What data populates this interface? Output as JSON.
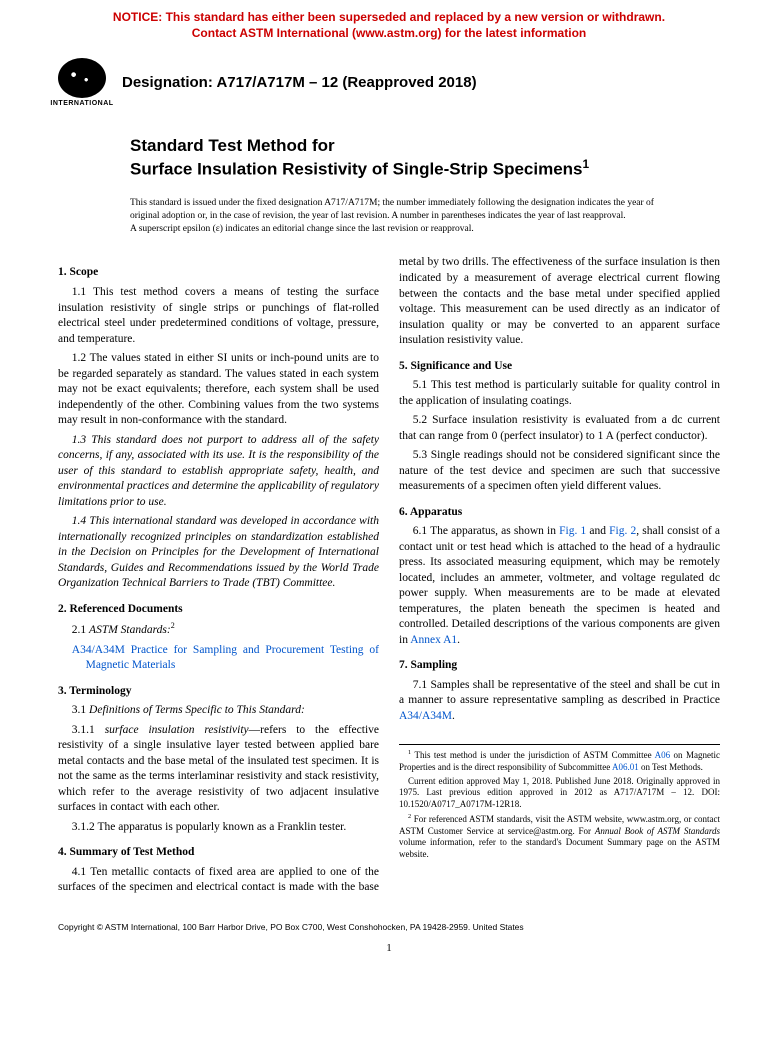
{
  "notice": {
    "line1": "NOTICE: This standard has either been superseded and replaced by a new version or withdrawn.",
    "line2": "Contact ASTM International (www.astm.org) for the latest information"
  },
  "logo_label": "INTERNATIONAL",
  "designation": "Designation: A717/A717M – 12 (Reapproved 2018)",
  "title_line1": "Standard Test Method for",
  "title_line2": "Surface Insulation Resistivity of Single-Strip Specimens",
  "title_sup": "1",
  "issue_note_l1": "This standard is issued under the fixed designation A717/A717M; the number immediately following the designation indicates the year of original adoption or, in the case of revision, the year of last revision. A number in parentheses indicates the year of last reapproval.",
  "issue_note_l2": "A superscript epsilon (ɛ) indicates an editorial change since the last revision or reapproval.",
  "s1_head": "1. Scope",
  "s1_1": "1.1 This test method covers a means of testing the surface insulation resistivity of single strips or punchings of flat-rolled electrical steel under predetermined conditions of voltage, pressure, and temperature.",
  "s1_2": "1.2 The values stated in either SI units or inch-pound units are to be regarded separately as standard. The values stated in each system may not be exact equivalents; therefore, each system shall be used independently of the other. Combining values from the two systems may result in non-conformance with the standard.",
  "s1_3": "1.3 This standard does not purport to address all of the safety concerns, if any, associated with its use. It is the responsibility of the user of this standard to establish appropriate safety, health, and environmental practices and determine the applicability of regulatory limitations prior to use.",
  "s1_4": "1.4 This international standard was developed in accordance with internationally recognized principles on standardization established in the Decision on Principles for the Development of International Standards, Guides and Recommendations issued by the World Trade Organization Technical Barriers to Trade (TBT) Committee.",
  "s2_head": "2. Referenced Documents",
  "s2_1_label": "2.1 ",
  "s2_1_ital": "ASTM Standards:",
  "s2_1_sup": "2",
  "s2_ref_code": "A34/A34M",
  "s2_ref_title": " Practice for Sampling and Procurement Testing of Magnetic Materials",
  "s3_head": "3. Terminology",
  "s3_1": "Definitions of Terms Specific to This Standard:",
  "s3_1_num": "3.1 ",
  "s3_1_1_num": "3.1.1 ",
  "s3_1_1_term": "surface insulation resistivity",
  "s3_1_1_body": "—refers to the effective resistivity of a single insulative layer tested between applied bare metal contacts and the base metal of the insulated test specimen. It is not the same as the terms interlaminar resistivity and stack resistivity, which refer to the average resistivity of two adjacent insulative surfaces in contact with each other.",
  "s3_1_2": "3.1.2 The apparatus is popularly known as a Franklin tester.",
  "s4_head": "4. Summary of Test Method",
  "s4_1": "4.1 Ten metallic contacts of fixed area are applied to one of the surfaces of the specimen and electrical contact is made with the base metal by two drills. The effectiveness of the surface insulation is then indicated by a measurement of average electrical current flowing between the contacts and the base metal under specified applied voltage. This measurement can be used directly as an indicator of insulation quality or may be converted to an apparent surface insulation resistivity value.",
  "s5_head": "5. Significance and Use",
  "s5_1": "5.1 This test method is particularly suitable for quality control in the application of insulating coatings.",
  "s5_2": "5.2 Surface insulation resistivity is evaluated from a dc current that can range from 0 (perfect insulator) to 1 A (perfect conductor).",
  "s5_3": "5.3 Single readings should not be considered significant since the nature of the test device and specimen are such that successive measurements of a specimen often yield different values.",
  "s6_head": "6. Apparatus",
  "s6_1a": "6.1 The apparatus, as shown in ",
  "s6_fig1": "Fig. 1",
  "s6_and": " and ",
  "s6_fig2": "Fig. 2",
  "s6_1b": ", shall consist of a contact unit or test head which is attached to the head of a hydraulic press. Its associated measuring equipment, which may be remotely located, includes an ammeter, voltmeter, and voltage regulated dc power supply. When measurements are to be made at elevated temperatures, the platen beneath the specimen is heated and controlled. Detailed descriptions of the various components are given in ",
  "s6_annex": "Annex A1",
  "s6_1c": ".",
  "s7_head": "7. Sampling",
  "s7_1a": "7.1 Samples shall be representative of the steel and shall be cut in a manner to assure representative sampling as described in Practice ",
  "s7_ref": "A34/A34M",
  "s7_1b": ".",
  "fn1a": " This test method is under the jurisdiction of ASTM Committee ",
  "fn1_link1": "A06",
  "fn1b": " on Magnetic Properties and is the direct responsibility of Subcommittee ",
  "fn1_link2": "A06.01",
  "fn1c": " on Test Methods.",
  "fn1d": "Current edition approved May 1, 2018. Published June 2018. Originally approved in 1975. Last previous edition approved in 2012 as A717/A717M – 12. DOI: 10.1520/A0717_A0717M-12R18.",
  "fn2a": " For referenced ASTM standards, visit the ASTM website, www.astm.org, or contact ASTM Customer Service at service@astm.org. For ",
  "fn2_ital": "Annual Book of ASTM Standards",
  "fn2b": " volume information, refer to the standard's Document Summary page on the ASTM website.",
  "copyright": "Copyright © ASTM International, 100 Barr Harbor Drive, PO Box C700, West Conshohocken, PA 19428-2959. United States",
  "pagenum": "1",
  "colors": {
    "notice": "#cc0000",
    "link": "#0055cc",
    "text": "#000000",
    "bg": "#ffffff"
  }
}
